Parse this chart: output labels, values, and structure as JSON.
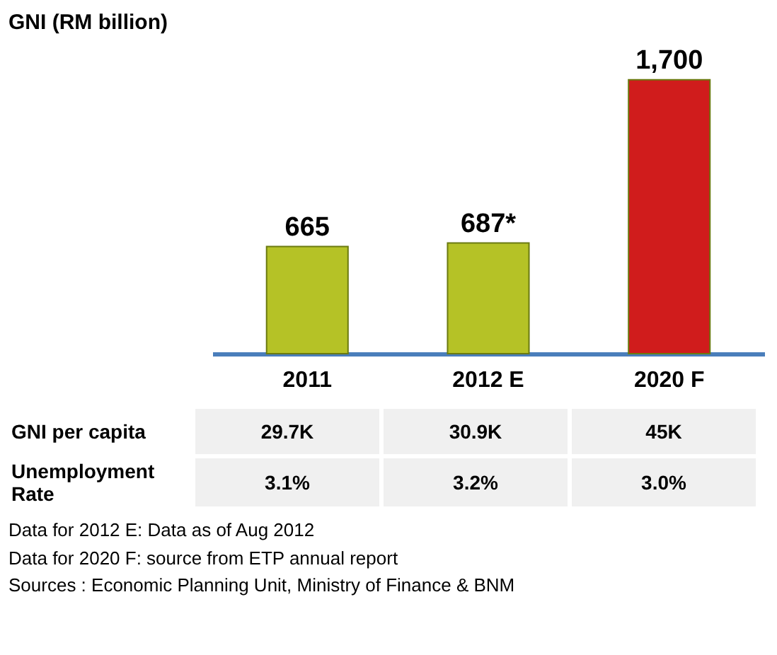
{
  "chart_data": [
    {
      "type": "bar",
      "title": "GNI (RM billion)",
      "categories": [
        "2011",
        "2012 E",
        "2020 F"
      ],
      "values": [
        665,
        687,
        1700
      ],
      "colors": [
        "#b5c226",
        "#b5c226",
        "#d01c1c"
      ],
      "value_labels": [
        "665",
        "687*",
        "1,700"
      ],
      "annotations": [
        "Data for 2012 E: Data as of Aug 2012",
        "Data for 2020 F: source from ETP annual report",
        "Sources : Economic Planning Unit, Ministry of Finance & BNM"
      ]
    },
    {
      "type": "other",
      "annotations": [
        "GNI per capita",
        "29.7K",
        "30.9K",
        "45K",
        "Unemployment Rate",
        "3.1%",
        "3.2%",
        "3.0%"
      ]
    }
  ]
}
